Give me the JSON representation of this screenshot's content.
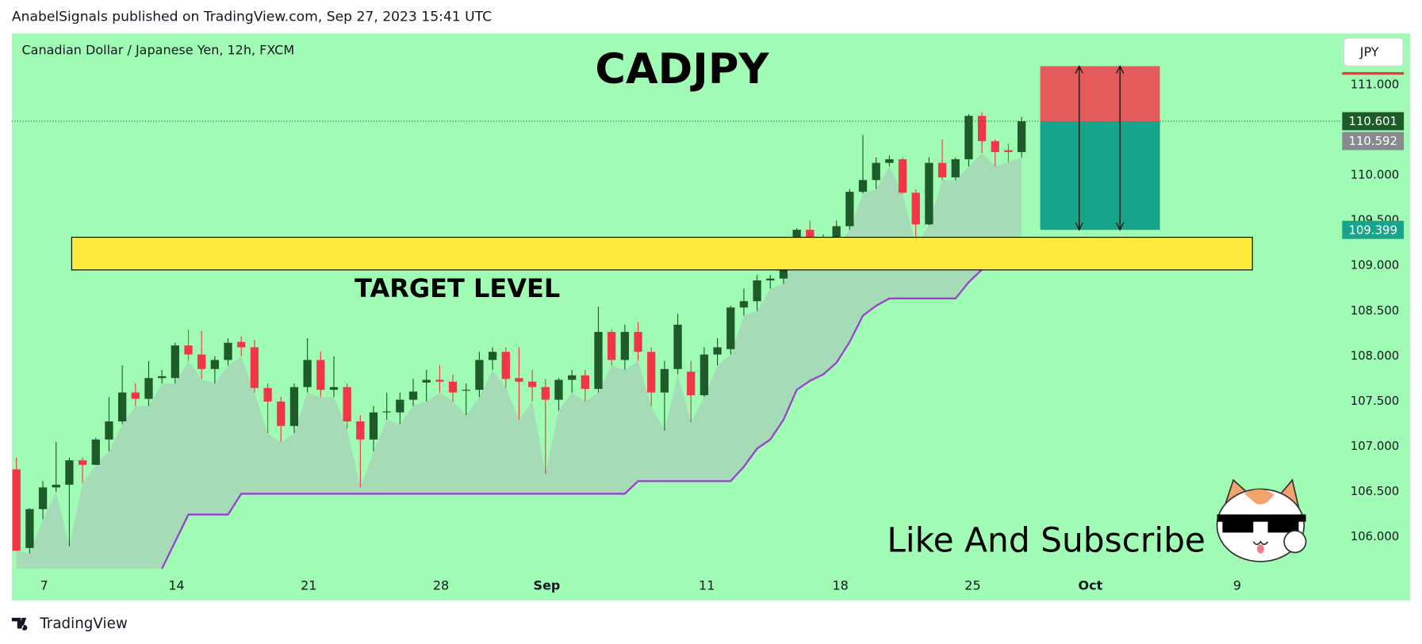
{
  "header": "AnabelSignals published on TradingView.com, Sep 27, 2023 15:41 UTC",
  "footer": "TradingView",
  "chart_data": {
    "type": "candlestick",
    "symbol": "Canadian Dollar / Japanese Yen, 12h, FXCM",
    "title": "CADJPY",
    "currency": "JPY",
    "annotations": [
      "TARGET LEVEL",
      "Like And Subscribe"
    ],
    "colors": {
      "up": "#1f5a2a",
      "down": "#f23645",
      "trail": "#9b3fce",
      "shade": "#a6dbb7",
      "zone": "#ffeb3b",
      "stop": "#e45b5b",
      "target": "#18a48a",
      "background": "#a0fbb4"
    },
    "open": [
      106.75,
      105.88,
      106.31,
      106.55,
      106.58,
      106.85,
      106.8,
      107.08,
      107.28,
      107.6,
      107.53,
      107.76,
      107.76,
      108.12,
      108.02,
      107.86,
      107.96,
      108.16,
      108.1,
      107.65,
      107.5,
      107.23,
      107.66,
      107.96,
      107.63,
      107.66,
      107.28,
      107.08,
      107.38,
      107.38,
      107.52,
      107.71,
      107.74,
      107.72,
      107.62,
      107.63,
      107.96,
      108.05,
      107.76,
      107.72,
      107.66,
      107.52,
      107.74,
      107.79,
      107.64,
      108.27,
      107.96,
      108.27,
      108.05,
      107.6,
      107.86,
      107.83,
      107.57,
      108.02,
      108.08,
      108.54,
      108.61,
      108.84,
      108.86,
      109.18,
      109.4,
      109.22,
      109.26,
      109.44,
      109.82,
      109.95,
      110.14,
      110.18,
      109.81,
      109.46,
      110.14,
      109.98,
      110.18,
      110.66,
      110.38,
      110.28,
      110.26
    ],
    "high": [
      106.88,
      106.32,
      106.62,
      107.05,
      106.88,
      106.88,
      107.1,
      107.55,
      107.9,
      107.7,
      107.95,
      107.85,
      108.15,
      108.3,
      108.28,
      108.0,
      108.2,
      108.22,
      108.18,
      107.7,
      107.55,
      107.7,
      108.2,
      108.05,
      108.0,
      107.7,
      107.35,
      107.45,
      107.6,
      107.6,
      107.75,
      107.85,
      107.9,
      107.8,
      107.7,
      108.05,
      108.1,
      108.1,
      108.1,
      107.85,
      107.75,
      107.76,
      107.85,
      107.85,
      108.55,
      108.3,
      108.35,
      108.38,
      108.1,
      107.95,
      108.47,
      107.95,
      108.1,
      108.2,
      108.56,
      108.75,
      108.9,
      108.9,
      109.22,
      109.42,
      109.5,
      109.35,
      109.5,
      109.85,
      110.45,
      110.2,
      110.22,
      110.2,
      109.85,
      110.2,
      110.4,
      110.2,
      110.68,
      110.7,
      110.4,
      110.35,
      110.65
    ],
    "low": [
      105.85,
      105.82,
      106.2,
      106.5,
      105.9,
      106.6,
      106.8,
      106.95,
      107.25,
      107.45,
      107.45,
      107.7,
      107.7,
      107.95,
      107.75,
      107.7,
      107.9,
      108.0,
      107.6,
      107.15,
      107.05,
      107.15,
      107.6,
      107.55,
      107.55,
      107.2,
      106.55,
      106.95,
      107.3,
      107.25,
      107.45,
      107.5,
      107.6,
      107.5,
      107.35,
      107.55,
      107.85,
      107.65,
      107.3,
      107.5,
      106.7,
      107.4,
      107.6,
      107.5,
      107.6,
      107.9,
      107.85,
      107.95,
      107.45,
      107.18,
      107.8,
      107.27,
      107.55,
      107.9,
      108.02,
      108.45,
      108.5,
      108.75,
      108.8,
      109.1,
      109.1,
      109.15,
      109.2,
      109.4,
      109.8,
      109.85,
      110.1,
      109.8,
      109.22,
      109.45,
      109.95,
      109.95,
      110.1,
      110.25,
      110.1,
      110.15,
      110.2
    ],
    "close": [
      105.85,
      106.31,
      106.55,
      106.58,
      106.85,
      106.8,
      107.08,
      107.28,
      107.6,
      107.53,
      107.76,
      107.78,
      108.12,
      108.02,
      107.86,
      107.96,
      108.15,
      108.1,
      107.65,
      107.5,
      107.23,
      107.66,
      107.96,
      107.63,
      107.66,
      107.28,
      107.08,
      107.38,
      107.39,
      107.52,
      107.61,
      107.74,
      107.72,
      107.6,
      107.63,
      107.96,
      108.05,
      107.75,
      107.72,
      107.66,
      107.52,
      107.74,
      107.79,
      107.64,
      108.27,
      107.96,
      108.27,
      108.05,
      107.6,
      107.86,
      108.35,
      107.57,
      108.02,
      108.1,
      108.54,
      108.61,
      108.84,
      108.86,
      109.18,
      109.4,
      109.26,
      109.3,
      109.44,
      109.82,
      109.95,
      110.14,
      110.18,
      109.81,
      109.46,
      110.14,
      109.98,
      110.18,
      110.66,
      110.38,
      110.26,
      110.26,
      110.6
    ],
    "trail": [
      null,
      null,
      null,
      null,
      null,
      null,
      null,
      null,
      null,
      null,
      null,
      105.65,
      105.95,
      106.25,
      106.25,
      106.25,
      106.25,
      106.48,
      106.48,
      106.48,
      106.48,
      106.48,
      106.48,
      106.48,
      106.48,
      106.48,
      106.48,
      106.48,
      106.48,
      106.48,
      106.48,
      106.48,
      106.48,
      106.48,
      106.48,
      106.48,
      106.48,
      106.48,
      106.48,
      106.48,
      106.48,
      106.48,
      106.48,
      106.48,
      106.48,
      106.48,
      106.48,
      106.62,
      106.62,
      106.62,
      106.62,
      106.62,
      106.62,
      106.62,
      106.62,
      106.78,
      106.98,
      107.08,
      107.3,
      107.63,
      107.73,
      107.8,
      107.93,
      108.16,
      108.45,
      108.56,
      108.64,
      108.64,
      108.64,
      108.64,
      108.64,
      108.64,
      108.82,
      108.96,
      null,
      null,
      null
    ],
    "zone": {
      "top": 109.317,
      "bottom": 108.956
    },
    "position": {
      "stop": 111.21,
      "entry": 110.601,
      "target": 109.399
    },
    "price_labels": [
      110.601,
      110.592,
      109.399
    ],
    "price_label_colors": [
      "#1f5a2a",
      "#868b8f",
      "#18a48a"
    ],
    "xlim": [
      -0.35,
      100.1
    ],
    "xticks": [
      {
        "value": 2.1,
        "label": "7"
      },
      {
        "value": 12.1,
        "label": "14"
      },
      {
        "value": 22.1,
        "label": "21"
      },
      {
        "value": 32.1,
        "label": "28"
      },
      {
        "value": 40.1,
        "label": "Sep"
      },
      {
        "value": 52.2,
        "label": "11"
      },
      {
        "value": 62.3,
        "label": "18"
      },
      {
        "value": 72.3,
        "label": "25"
      },
      {
        "value": 81.2,
        "label": "Oct"
      },
      {
        "value": 92.3,
        "label": "9"
      }
    ],
    "ylim": [
      105.299,
      111.571
    ],
    "yticks": [
      {
        "value": 106,
        "label": "106.000"
      },
      {
        "value": 106.5,
        "label": "106.500"
      },
      {
        "value": 107,
        "label": "107.000"
      },
      {
        "value": 107.5,
        "label": "107.500"
      },
      {
        "value": 108,
        "label": "108.000"
      },
      {
        "value": 108.5,
        "label": "108.500"
      },
      {
        "value": 109,
        "label": "109.000"
      },
      {
        "value": 109.5,
        "label": "109.500"
      },
      {
        "value": 110,
        "label": "110.000"
      },
      {
        "value": 111,
        "label": "111.000"
      }
    ]
  }
}
